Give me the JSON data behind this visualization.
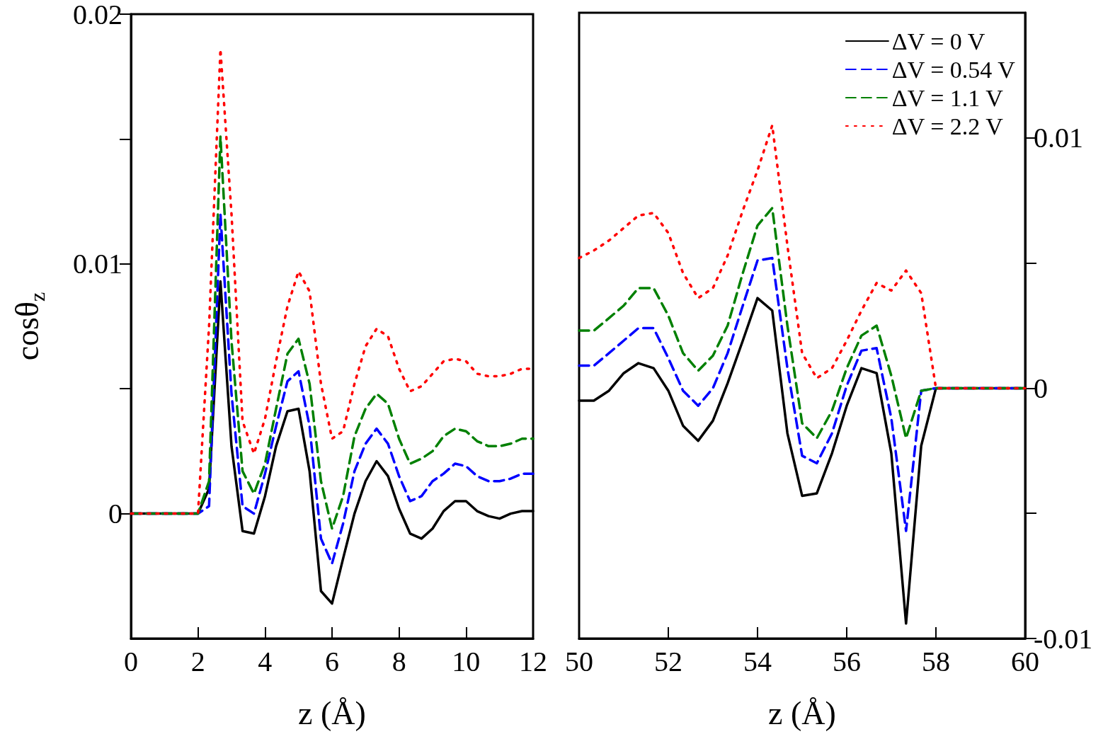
{
  "chart_data": [
    {
      "type": "line",
      "xlabel": "z (Å)",
      "ylabel": "cosθ$_{z}$",
      "xlim": [
        0,
        12
      ],
      "xticks": [
        0,
        2,
        4,
        6,
        8,
        10,
        12
      ],
      "ylim": [
        -0.005,
        0.02
      ],
      "yticks": [
        0,
        {
          "value": 0.005,
          "label": null
        },
        0.01,
        {
          "value": 0.015,
          "label": null
        },
        0.02
      ],
      "grid": false,
      "legend": false,
      "marker": "none",
      "x": [
        0,
        2,
        2.33,
        2.67,
        3,
        3.33,
        3.67,
        4,
        4.33,
        4.67,
        5,
        5.33,
        5.67,
        6,
        6.33,
        6.67,
        7,
        7.33,
        7.67,
        8,
        8.33,
        8.67,
        9,
        9.33,
        9.67,
        10,
        10.33,
        10.67,
        11,
        11.33,
        11.67,
        12
      ],
      "series": [
        {
          "color": "#000000",
          "line_style": "solid",
          "values": [
            0,
            0,
            0.001,
            0.0093,
            0.0027,
            -0.0007,
            -0.0008,
            0.0007,
            0.0027,
            0.0041,
            0.0042,
            0.0017,
            -0.0031,
            -0.0036,
            -0.0018,
            0,
            0.0013,
            0.0021,
            0.0015,
            0.0002,
            -0.0008,
            -0.001,
            -0.0006,
            0.0001,
            0.0005,
            0.0005,
            0.0001,
            -0.0001,
            -0.0002,
            0,
            0.0001,
            0.0001
          ]
        },
        {
          "color": "#0000ff",
          "line_style": "dashed",
          "values": [
            0,
            0,
            0.0003,
            0.012,
            0.0048,
            0.0003,
            0,
            0.0016,
            0.0035,
            0.0053,
            0.0057,
            0.0035,
            -0.001,
            -0.002,
            -0.0004,
            0.0017,
            0.0028,
            0.0034,
            0.0028,
            0.0015,
            0.0005,
            0.0007,
            0.0013,
            0.0016,
            0.002,
            0.0019,
            0.0015,
            0.0013,
            0.0013,
            0.0014,
            0.0016,
            0.0016
          ]
        },
        {
          "color": "#008000",
          "line_style": "dashed",
          "values": [
            0,
            0,
            0.0013,
            0.0151,
            0.0069,
            0.0017,
            0.0008,
            0.002,
            0.0042,
            0.0064,
            0.007,
            0.0052,
            0.0013,
            -0.0006,
            0.0007,
            0.0031,
            0.0042,
            0.0048,
            0.0044,
            0.003,
            0.002,
            0.0022,
            0.0025,
            0.0031,
            0.0034,
            0.0033,
            0.0029,
            0.0027,
            0.0027,
            0.0028,
            0.003,
            0.003
          ]
        },
        {
          "color": "#ff0000",
          "line_style": "dotted",
          "values": [
            0,
            0,
            0.0075,
            0.0186,
            0.012,
            0.0037,
            0.0024,
            0.0038,
            0.0061,
            0.0083,
            0.0097,
            0.0089,
            0.0052,
            0.003,
            0.0033,
            0.0052,
            0.0067,
            0.0074,
            0.0071,
            0.0058,
            0.0049,
            0.0051,
            0.0056,
            0.0061,
            0.0062,
            0.0061,
            0.0056,
            0.0055,
            0.0055,
            0.0056,
            0.0058,
            0.0058
          ]
        }
      ]
    },
    {
      "type": "line",
      "xlabel": "z (Å)",
      "xlim": [
        50,
        60
      ],
      "xticks": [
        50,
        52,
        54,
        56,
        58,
        60
      ],
      "ylim": [
        -0.01,
        0.015
      ],
      "yticks": [
        -0.01,
        {
          "value": -0.005,
          "label": null
        },
        0,
        {
          "value": 0.005,
          "label": null
        },
        0.01
      ],
      "grid": false,
      "legend": "top right",
      "marker": "none",
      "x": [
        50,
        50.33,
        50.67,
        51,
        51.33,
        51.67,
        52,
        52.33,
        52.67,
        53,
        53.33,
        53.67,
        54,
        54.33,
        54.67,
        55,
        55.33,
        55.67,
        56,
        56.33,
        56.67,
        57,
        57.33,
        57.67,
        58,
        60
      ],
      "series": [
        {
          "name": "ΔV = 0 V",
          "color": "#000000",
          "line_style": "solid",
          "values": [
            -0.0005,
            -0.0005,
            -0.0001,
            0.0006,
            0.001,
            0.0008,
            -0.0001,
            -0.0015,
            -0.0021,
            -0.0013,
            0.0002,
            0.0019,
            0.0036,
            0.0031,
            -0.0018,
            -0.0043,
            -0.0042,
            -0.0026,
            -0.0007,
            0.0008,
            0.0006,
            -0.0026,
            -0.0094,
            -0.0023,
            0,
            0
          ]
        },
        {
          "name": "ΔV = 0.54 V",
          "color": "#0000ff",
          "line_style": "dashed",
          "values": [
            0.0009,
            0.0009,
            0.0014,
            0.0019,
            0.0024,
            0.0024,
            0.0012,
            -0.0001,
            -0.0007,
            0,
            0.0014,
            0.0033,
            0.0051,
            0.0052,
            0.0008,
            -0.0027,
            -0.003,
            -0.0018,
            0.0001,
            0.0015,
            0.0016,
            -0.0012,
            -0.0057,
            -0.0001,
            0,
            0
          ]
        },
        {
          "name": "ΔV = 1.1 V",
          "color": "#008000",
          "line_style": "dashed",
          "values": [
            0.0023,
            0.0023,
            0.0028,
            0.0033,
            0.004,
            0.004,
            0.0029,
            0.0014,
            0.0007,
            0.0013,
            0.0025,
            0.0046,
            0.0065,
            0.0072,
            0.0025,
            -0.0014,
            -0.002,
            -0.0009,
            0.0008,
            0.0021,
            0.0025,
            0.0005,
            -0.002,
            -0.0001,
            0,
            0
          ]
        },
        {
          "name": "ΔV = 2.2 V",
          "color": "#ff0000",
          "line_style": "dotted",
          "values": [
            0.0052,
            0.0055,
            0.0059,
            0.0064,
            0.0069,
            0.007,
            0.0062,
            0.0046,
            0.0036,
            0.004,
            0.0053,
            0.0071,
            0.0087,
            0.0105,
            0.0057,
            0.0014,
            0.0004,
            0.0008,
            0.0019,
            0.0031,
            0.0042,
            0.0039,
            0.0047,
            0.0038,
            0,
            0
          ]
        }
      ]
    }
  ]
}
